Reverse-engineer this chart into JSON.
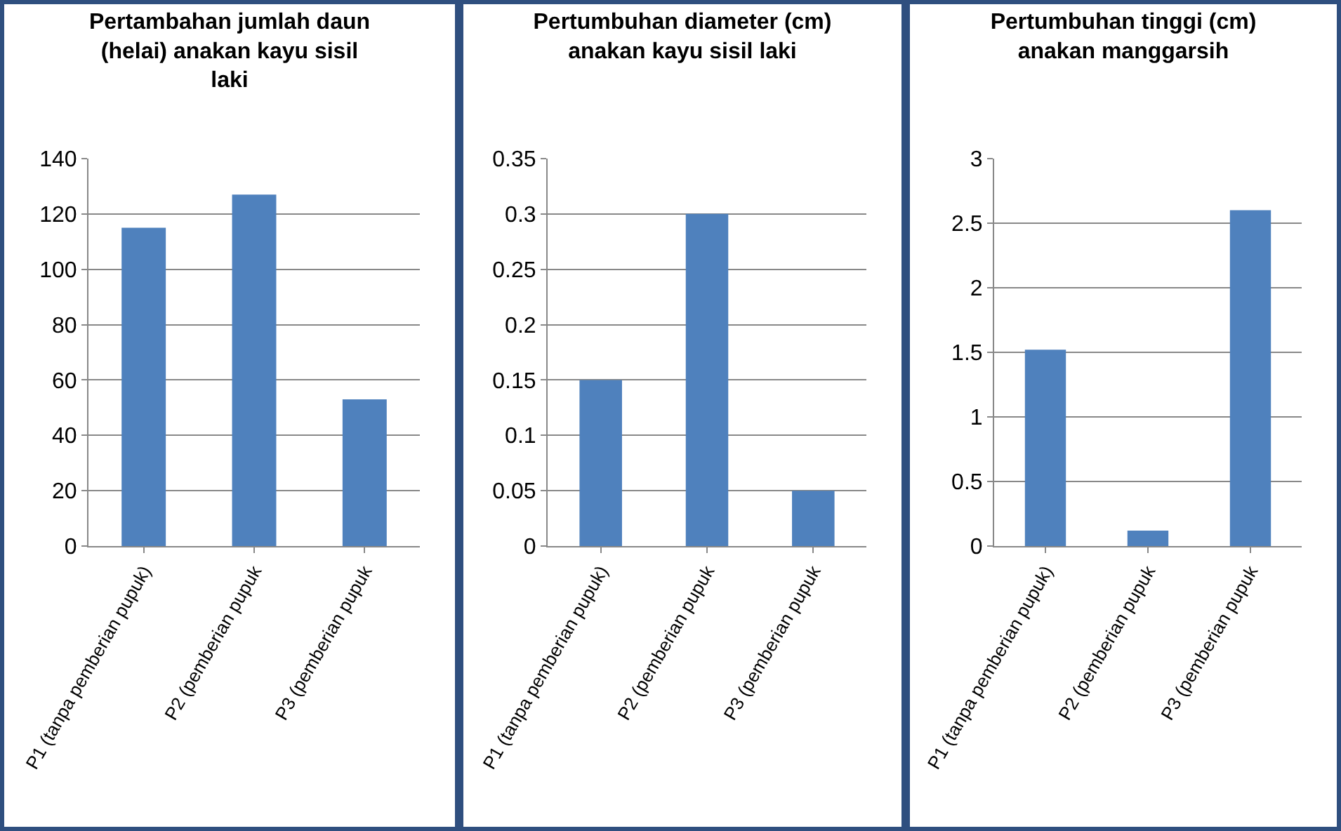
{
  "chart_data": [
    {
      "type": "bar",
      "title": "Pertambahan jumlah daun (helai) anakan kayu sisil laki",
      "categories": [
        "P1 (tanpa pemberian pupuk)",
        "P2 (pemberian pupuk",
        "P3 (pemberian pupuk"
      ],
      "values": [
        115,
        127,
        53
      ],
      "color": "#4f81bd",
      "ylim": [
        0,
        140
      ],
      "yticks": [
        0,
        20,
        40,
        60,
        80,
        100,
        120,
        140
      ],
      "grid": "y"
    },
    {
      "type": "bar",
      "title": "Pertumbuhan diameter (cm) anakan kayu sisil laki",
      "categories": [
        "P1 (tanpa pemberian pupuk)",
        "P2 (pemberian pupuk",
        "P3 (pemberian pupuk"
      ],
      "values": [
        0.15,
        0.3,
        0.05
      ],
      "color": "#4f81bd",
      "ylim": [
        0,
        0.35
      ],
      "yticks": [
        0,
        0.05,
        0.1,
        0.15,
        0.2,
        0.25,
        0.3,
        0.35
      ],
      "grid": "y"
    },
    {
      "type": "bar",
      "title": "Pertumbuhan tinggi (cm) anakan manggarsih",
      "categories": [
        "P1 (tanpa pemberian pupuk)",
        "P2 (pemberian pupuk",
        "P3 (pemberian pupuk"
      ],
      "values": [
        1.52,
        0.12,
        2.6
      ],
      "color": "#4f81bd",
      "ylim": [
        0,
        3
      ],
      "yticks": [
        0,
        0.5,
        1,
        1.5,
        2,
        2.5,
        3
      ],
      "grid": "y"
    }
  ]
}
